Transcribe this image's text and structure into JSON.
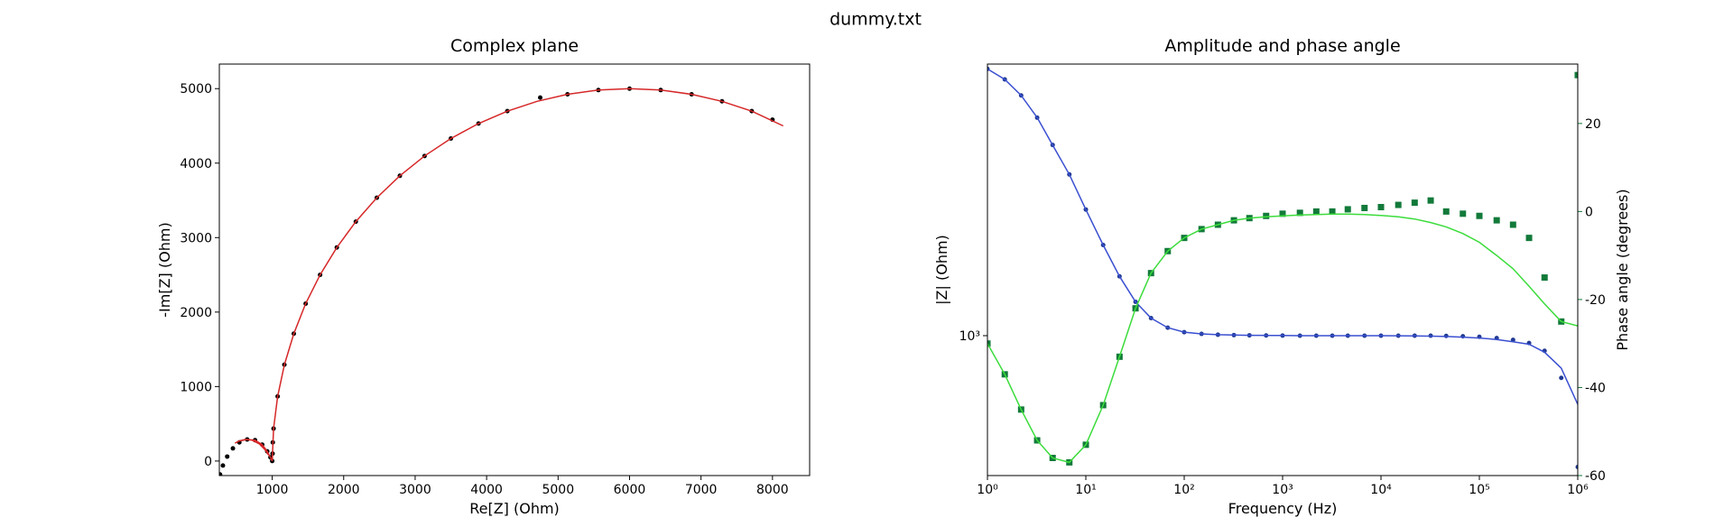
{
  "title": "dummy.txt",
  "chart_data": [
    {
      "type": "scatter",
      "title": "Complex plane",
      "x_label": "Re[Z] (Ohm)",
      "y_label": "-Im[Z] (Ohm)",
      "xlim": [
        260,
        8520
      ],
      "ylim": [
        -195,
        5330
      ],
      "xticks": [
        1000,
        2000,
        3000,
        4000,
        5000,
        6000,
        7000,
        8000
      ],
      "yticks": [
        0,
        1000,
        2000,
        3000,
        4000,
        5000
      ],
      "series": [
        {
          "style": "markers",
          "color": "#000000",
          "x": [
            270,
            310,
            370,
            450,
            540,
            650,
            760,
            860,
            930,
            975,
            1000,
            1005,
            1008,
            1019,
            1076,
            1170,
            1302,
            1468,
            1670,
            1904,
            2170,
            2464,
            2786,
            3132,
            3500,
            3887,
            4290,
            4750,
            5132,
            5564,
            6000,
            6436,
            6868,
            7294,
            7710,
            8000
          ],
          "values": [
            -180,
            -60,
            60,
            170,
            250,
            290,
            280,
            220,
            130,
            50,
            0,
            100,
            250,
            436,
            868,
            1294,
            1710,
            2113,
            2500,
            2868,
            3214,
            3536,
            3830,
            4096,
            4330,
            4532,
            4698,
            4880,
            4924,
            4981,
            5000,
            4981,
            4924,
            4830,
            4698,
            4583
          ]
        },
        {
          "style": "line",
          "color": "#d62728",
          "x": [
            950,
            900,
            820,
            720,
            620,
            540,
            480,
            540,
            650,
            760,
            860,
            930,
            975,
            1000,
            1019,
            1076,
            1170,
            1302,
            1468,
            1670,
            1904,
            2170,
            2464,
            2786,
            3132,
            3500,
            3887,
            4290,
            4706,
            5132,
            5564,
            6000,
            6436,
            6868,
            7294,
            7710,
            8150
          ],
          "values": [
            80,
            150,
            230,
            280,
            290,
            270,
            240,
            270,
            290,
            280,
            220,
            130,
            50,
            0,
            436,
            868,
            1294,
            1710,
            2113,
            2500,
            2868,
            3214,
            3536,
            3830,
            4096,
            4330,
            4532,
            4698,
            4830,
            4924,
            4981,
            5000,
            4981,
            4924,
            4830,
            4698,
            4500
          ]
        }
      ]
    },
    {
      "type": "bode",
      "title": "Amplitude and phase angle",
      "x_label": "Frequency (Hz)",
      "y_label": "|Z| (Ohm)",
      "y2_label": "Phase angle (degrees)",
      "y_label_color": "#1f3a93",
      "y2_label_color": "#127a3a",
      "xscale": "log",
      "yscale": "log",
      "xlim": [
        1,
        1000000
      ],
      "ylim": [
        307,
        9900
      ],
      "y2lim": [
        -60,
        33.5
      ],
      "xticks": [
        {
          "value": 1,
          "label": "10⁰"
        },
        {
          "value": 10,
          "label": "10¹"
        },
        {
          "value": 100,
          "label": "10²"
        },
        {
          "value": 1000,
          "label": "10³"
        },
        {
          "value": 10000,
          "label": "10⁴"
        },
        {
          "value": 100000,
          "label": "10⁵"
        },
        {
          "value": 1000000,
          "label": "10⁶"
        }
      ],
      "yticks": [
        {
          "value": 1000,
          "label": "10³"
        }
      ],
      "y2ticks": [
        -60,
        -40,
        -20,
        0,
        20
      ],
      "x": [
        1,
        1.5,
        2.2,
        3.2,
        4.6,
        6.8,
        10,
        15,
        22,
        32,
        46,
        68,
        100,
        150,
        220,
        320,
        460,
        680,
        1000,
        1500,
        2200,
        3200,
        4600,
        6800,
        10000,
        15000,
        22000,
        32000,
        46000,
        68000,
        100000,
        150000,
        220000,
        320000,
        460000,
        680000,
        1000000
      ],
      "series": [
        {
          "style": "markers",
          "marker": "circle",
          "axis": "y",
          "color": "#1f3a93",
          "values": [
            9500,
            8700,
            7600,
            6300,
            5000,
            3900,
            2900,
            2150,
            1650,
            1330,
            1160,
            1070,
            1030,
            1015,
            1008,
            1005,
            1003,
            1002,
            1001,
            1000,
            1000,
            1000,
            1000,
            1000,
            1000,
            1000,
            1000,
            1000,
            998,
            995,
            990,
            980,
            965,
            940,
            880,
            700,
            330
          ]
        },
        {
          "style": "line",
          "axis": "y",
          "color": "#3a4fd0",
          "values": [
            9500,
            8700,
            7600,
            6300,
            5000,
            3900,
            2900,
            2150,
            1650,
            1330,
            1160,
            1070,
            1030,
            1015,
            1008,
            1005,
            1003,
            1002,
            1001,
            1000,
            1000,
            1000,
            1000,
            1000,
            1000,
            999,
            998,
            996,
            993,
            988,
            980,
            968,
            950,
            930,
            870,
            760,
            560
          ]
        },
        {
          "style": "markers",
          "marker": "square",
          "axis": "y2",
          "color": "#127a3a",
          "values": [
            -30,
            -37,
            -45,
            -52,
            -56,
            -57,
            -53,
            -44,
            -33,
            -22,
            -14,
            -9,
            -6,
            -4,
            -3,
            -2,
            -1.5,
            -1,
            -0.5,
            -0.3,
            0,
            0,
            0.5,
            0.8,
            1,
            1.5,
            2,
            2.5,
            0,
            -0.5,
            -1,
            -2,
            -3,
            -6,
            -15,
            -25,
            31
          ]
        },
        {
          "style": "line",
          "axis": "y2",
          "color": "#3bdc3b",
          "values": [
            -30,
            -37,
            -45,
            -52,
            -56,
            -57,
            -53,
            -44,
            -33,
            -22,
            -14,
            -9,
            -6,
            -4,
            -3,
            -2,
            -1.5,
            -1.2,
            -1,
            -0.8,
            -0.7,
            -0.6,
            -0.6,
            -0.7,
            -0.9,
            -1.2,
            -1.7,
            -2.5,
            -3.5,
            -5,
            -7,
            -10,
            -13,
            -17,
            -21,
            -25,
            -26
          ]
        }
      ]
    }
  ]
}
